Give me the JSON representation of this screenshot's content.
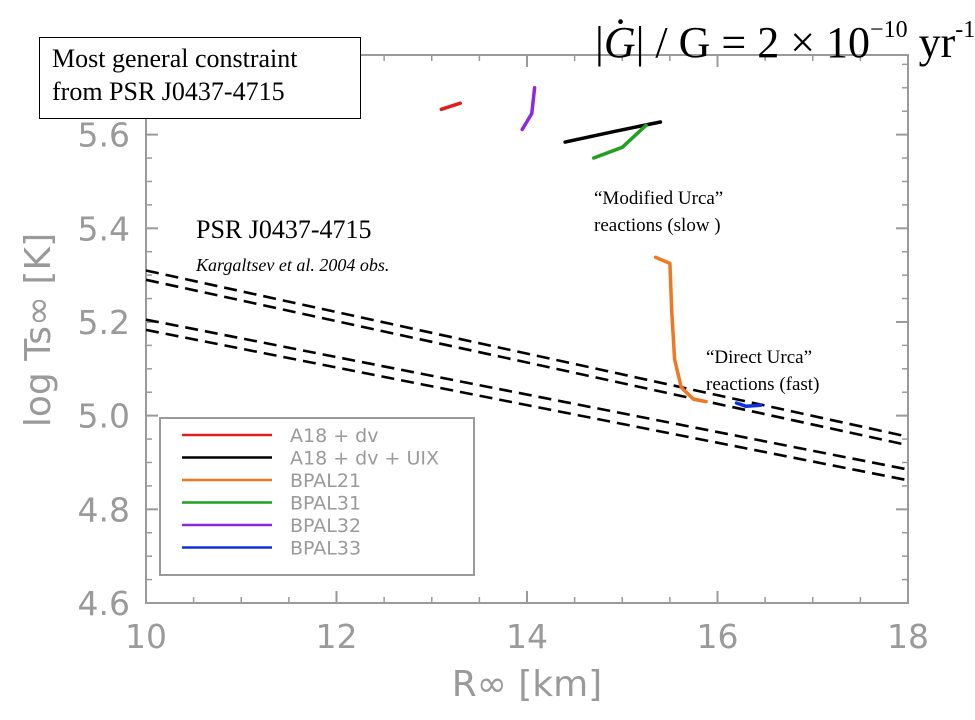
{
  "header": {
    "formula_prefix": "|",
    "formula_G": "G",
    "formula_mid": "| / G = 2 × 10",
    "formula_exp": "−10",
    "formula_unit": " yr",
    "formula_unit_exp": "-1"
  },
  "annotations": {
    "constraint_line1": "Most general constraint",
    "constraint_line2": "from PSR J0437-4715",
    "pulsar_name": "PSR J0437-4715",
    "pulsar_ref": "Kargaltsev et al. 2004 obs.",
    "murca_line1": "“Modified Urca”",
    "murca_line2": "reactions (slow )",
    "durca_line1": "“Direct Urca”",
    "durca_line2": "reactions (fast)"
  },
  "chart_data": {
    "type": "line",
    "xlabel": "R∞ [km]",
    "ylabel": "log Ts∞ [K]",
    "xlim": [
      10,
      18
    ],
    "ylim": [
      4.6,
      5.77
    ],
    "x_ticks": [
      "10",
      "12",
      "14",
      "16",
      "18"
    ],
    "y_ticks": [
      "4.6",
      "4.8",
      "5.0",
      "5.2",
      "5.4",
      "5.6"
    ],
    "legend_position": "bottom-left",
    "series": [
      {
        "name": "A18 + dv",
        "color": "#e02020",
        "points": [
          [
            13.1,
            5.654
          ],
          [
            13.3,
            5.667
          ]
        ]
      },
      {
        "name": "A18 + dv + UIX",
        "color": "#000000",
        "points": [
          [
            14.4,
            5.584
          ],
          [
            14.9,
            5.606
          ],
          [
            15.4,
            5.627
          ]
        ]
      },
      {
        "name": "BPAL21",
        "color": "#f07820",
        "points": [
          [
            15.35,
            5.338
          ],
          [
            15.5,
            5.325
          ],
          [
            15.52,
            5.22
          ],
          [
            15.55,
            5.12
          ],
          [
            15.62,
            5.06
          ],
          [
            15.75,
            5.035
          ],
          [
            15.88,
            5.03
          ]
        ]
      },
      {
        "name": "BPAL31",
        "color": "#20a020",
        "points": [
          [
            14.7,
            5.55
          ],
          [
            15.0,
            5.573
          ],
          [
            15.25,
            5.62
          ]
        ]
      },
      {
        "name": "BPAL32",
        "color": "#8a2be2",
        "points": [
          [
            13.95,
            5.611
          ],
          [
            14.05,
            5.645
          ],
          [
            14.08,
            5.7
          ]
        ]
      },
      {
        "name": "BPAL33",
        "color": "#1030e0",
        "points": [
          [
            16.2,
            5.027
          ],
          [
            16.3,
            5.02
          ],
          [
            16.45,
            5.022
          ]
        ]
      }
    ],
    "observation_bands": [
      {
        "points": [
          [
            10.0,
            5.31
          ],
          [
            18.0,
            4.955
          ]
        ]
      },
      {
        "points": [
          [
            10.0,
            5.29
          ],
          [
            18.0,
            4.937
          ]
        ]
      },
      {
        "points": [
          [
            10.0,
            5.205
          ],
          [
            18.0,
            4.885
          ]
        ]
      },
      {
        "points": [
          [
            10.0,
            5.183
          ],
          [
            18.0,
            4.862
          ]
        ]
      }
    ]
  }
}
